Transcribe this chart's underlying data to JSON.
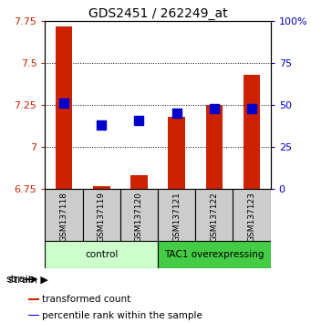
{
  "title": "GDS2451 / 262249_at",
  "samples": [
    "GSM137118",
    "GSM137119",
    "GSM137120",
    "GSM137121",
    "GSM137122",
    "GSM137123"
  ],
  "transformed_counts": [
    7.72,
    6.765,
    6.83,
    7.18,
    7.25,
    7.43
  ],
  "percentile_ranks": [
    51,
    38,
    41,
    45,
    48,
    48
  ],
  "bar_bottom": 6.75,
  "ylim_left": [
    6.75,
    7.75
  ],
  "ylim_right": [
    0,
    100
  ],
  "yticks_left": [
    6.75,
    7.0,
    7.25,
    7.5,
    7.75
  ],
  "yticks_right": [
    0,
    25,
    50,
    75,
    100
  ],
  "ytick_labels_left": [
    "6.75",
    "7",
    "7.25",
    "7.5",
    "7.75"
  ],
  "ytick_labels_right": [
    "0",
    "25",
    "50",
    "75",
    "100%"
  ],
  "bar_color": "#cc2200",
  "dot_color": "#0000cc",
  "groups": [
    {
      "label": "control",
      "indices": [
        0,
        1,
        2
      ],
      "bg_color": "#ccffcc",
      "border_color": "#000000"
    },
    {
      "label": "TAC1 overexpressing",
      "indices": [
        3,
        4,
        5
      ],
      "bg_color": "#44cc44",
      "border_color": "#000000"
    }
  ],
  "sample_box_color": "#cccccc",
  "strain_label": "strain",
  "legend_items": [
    {
      "color": "#cc2200",
      "label": "transformed count"
    },
    {
      "color": "#0000cc",
      "label": "percentile rank within the sample"
    }
  ],
  "bar_width": 0.45,
  "dot_size": 55
}
